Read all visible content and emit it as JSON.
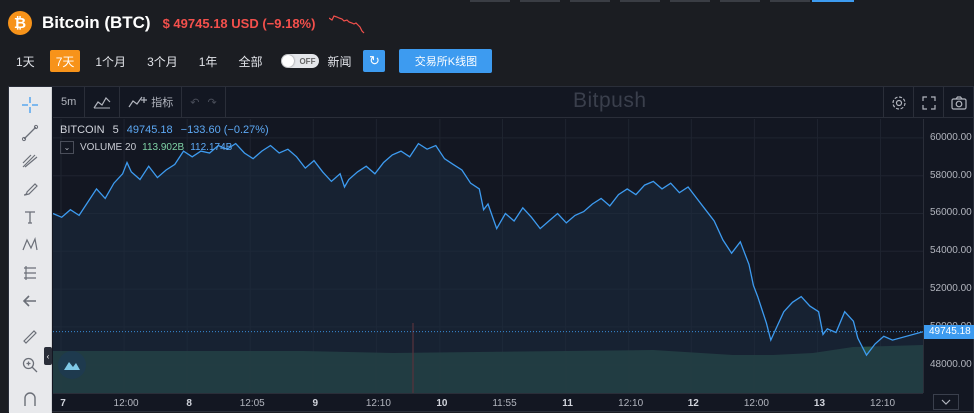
{
  "header": {
    "logo_glyph": "₿",
    "coin_name": "Bitcoin (BTC)",
    "price_change": "$ 49745.18 USD (−9.18%)",
    "accent_color": "#f4504c",
    "brand_color": "#f7931a"
  },
  "range": {
    "items": [
      "1天",
      "7天",
      "1个月",
      "3个月",
      "1年",
      "全部"
    ],
    "active": "7天",
    "toggle_label": "OFF",
    "news_label": "新闻",
    "refresh_icon": "refresh-icon",
    "kline_label": "交易所K线图"
  },
  "toolbar": {
    "interval": "5m",
    "indicators_label": "指标",
    "watermark": "Bitpush"
  },
  "legend": {
    "symbol": "BITCOIN",
    "interval": "5",
    "price": "49745.18",
    "change": "−133.60 (−0.27%)",
    "volume_label": "VOLUME 20",
    "volume_value": "113.902B",
    "volume_ma": "112.174B"
  },
  "chart_data": {
    "type": "line",
    "title": "",
    "xlabel": "",
    "ylabel": "",
    "ylim": [
      46500,
      61000
    ],
    "yticks": [
      "60000.00",
      "58000.00",
      "56000.00",
      "54000.00",
      "52000.00",
      "50000.00",
      "48000.00"
    ],
    "ytick_values": [
      60000,
      58000,
      56000,
      54000,
      52000,
      50000,
      48000
    ],
    "last_price_label": "49745.18",
    "last_price": 49745.18,
    "xticks": [
      {
        "label": "7",
        "major": true,
        "pos": 0.0
      },
      {
        "label": "12:00",
        "major": false,
        "pos": 0.0725
      },
      {
        "label": "8",
        "major": true,
        "pos": 0.145
      },
      {
        "label": "12:05",
        "major": false,
        "pos": 0.2175
      },
      {
        "label": "9",
        "major": true,
        "pos": 0.29
      },
      {
        "label": "12:10",
        "major": false,
        "pos": 0.3625
      },
      {
        "label": "10",
        "major": true,
        "pos": 0.4355
      },
      {
        "label": "11:55",
        "major": false,
        "pos": 0.5075
      },
      {
        "label": "11",
        "major": true,
        "pos": 0.58
      },
      {
        "label": "12:10",
        "major": false,
        "pos": 0.6525
      },
      {
        "label": "12",
        "major": true,
        "pos": 0.7245
      },
      {
        "label": "12:00",
        "major": false,
        "pos": 0.797
      },
      {
        "label": "13",
        "major": true,
        "pos": 0.8695
      },
      {
        "label": "12:10",
        "major": false,
        "pos": 0.942
      }
    ],
    "series": [
      {
        "values": [
          [
            0.0,
            56000
          ],
          [
            0.01,
            55800
          ],
          [
            0.02,
            56200
          ],
          [
            0.03,
            55900
          ],
          [
            0.04,
            56600
          ],
          [
            0.05,
            57300
          ],
          [
            0.06,
            56800
          ],
          [
            0.07,
            57600
          ],
          [
            0.08,
            58100
          ],
          [
            0.085,
            58700
          ],
          [
            0.09,
            58200
          ],
          [
            0.1,
            57800
          ],
          [
            0.11,
            58500
          ],
          [
            0.12,
            57900
          ],
          [
            0.13,
            58300
          ],
          [
            0.14,
            58600
          ],
          [
            0.15,
            59300
          ],
          [
            0.16,
            59000
          ],
          [
            0.17,
            59300
          ],
          [
            0.18,
            59200
          ],
          [
            0.19,
            59600
          ],
          [
            0.2,
            59400
          ],
          [
            0.21,
            59700
          ],
          [
            0.22,
            59200
          ],
          [
            0.23,
            58900
          ],
          [
            0.24,
            59300
          ],
          [
            0.25,
            59600
          ],
          [
            0.26,
            59200
          ],
          [
            0.27,
            59400
          ],
          [
            0.28,
            59000
          ],
          [
            0.29,
            58400
          ],
          [
            0.3,
            58800
          ],
          [
            0.31,
            58200
          ],
          [
            0.32,
            57700
          ],
          [
            0.33,
            58100
          ],
          [
            0.335,
            57400
          ],
          [
            0.34,
            57800
          ],
          [
            0.35,
            58200
          ],
          [
            0.36,
            58500
          ],
          [
            0.37,
            58100
          ],
          [
            0.38,
            58700
          ],
          [
            0.39,
            59100
          ],
          [
            0.4,
            59300
          ],
          [
            0.41,
            59000
          ],
          [
            0.42,
            59700
          ],
          [
            0.43,
            59400
          ],
          [
            0.44,
            59600
          ],
          [
            0.45,
            58900
          ],
          [
            0.46,
            58600
          ],
          [
            0.47,
            58300
          ],
          [
            0.48,
            57600
          ],
          [
            0.49,
            57300
          ],
          [
            0.495,
            56200
          ],
          [
            0.5,
            56500
          ],
          [
            0.51,
            55200
          ],
          [
            0.52,
            56000
          ],
          [
            0.53,
            55600
          ],
          [
            0.54,
            56300
          ],
          [
            0.55,
            55800
          ],
          [
            0.56,
            55200
          ],
          [
            0.57,
            55600
          ],
          [
            0.58,
            56000
          ],
          [
            0.59,
            55500
          ],
          [
            0.6,
            55900
          ],
          [
            0.61,
            56100
          ],
          [
            0.62,
            56500
          ],
          [
            0.63,
            56800
          ],
          [
            0.64,
            56400
          ],
          [
            0.65,
            57000
          ],
          [
            0.66,
            57300
          ],
          [
            0.67,
            57000
          ],
          [
            0.68,
            57500
          ],
          [
            0.69,
            57700
          ],
          [
            0.7,
            57300
          ],
          [
            0.71,
            57600
          ],
          [
            0.72,
            57100
          ],
          [
            0.73,
            57400
          ],
          [
            0.74,
            56800
          ],
          [
            0.75,
            56200
          ],
          [
            0.76,
            55600
          ],
          [
            0.77,
            54600
          ],
          [
            0.78,
            53900
          ],
          [
            0.79,
            54500
          ],
          [
            0.8,
            53300
          ],
          [
            0.805,
            52200
          ],
          [
            0.81,
            51600
          ],
          [
            0.82,
            50200
          ],
          [
            0.825,
            49300
          ],
          [
            0.83,
            49800
          ],
          [
            0.84,
            50800
          ],
          [
            0.85,
            51300
          ],
          [
            0.86,
            51600
          ],
          [
            0.87,
            51100
          ],
          [
            0.88,
            50800
          ],
          [
            0.885,
            49600
          ],
          [
            0.89,
            49900
          ],
          [
            0.9,
            49700
          ],
          [
            0.91,
            50800
          ],
          [
            0.92,
            50300
          ],
          [
            0.925,
            49400
          ],
          [
            0.935,
            48500
          ],
          [
            0.945,
            49100
          ],
          [
            0.955,
            49500
          ],
          [
            0.965,
            49300
          ],
          [
            1.0,
            49745.18
          ]
        ],
        "color": "#3d9bf0"
      }
    ]
  }
}
